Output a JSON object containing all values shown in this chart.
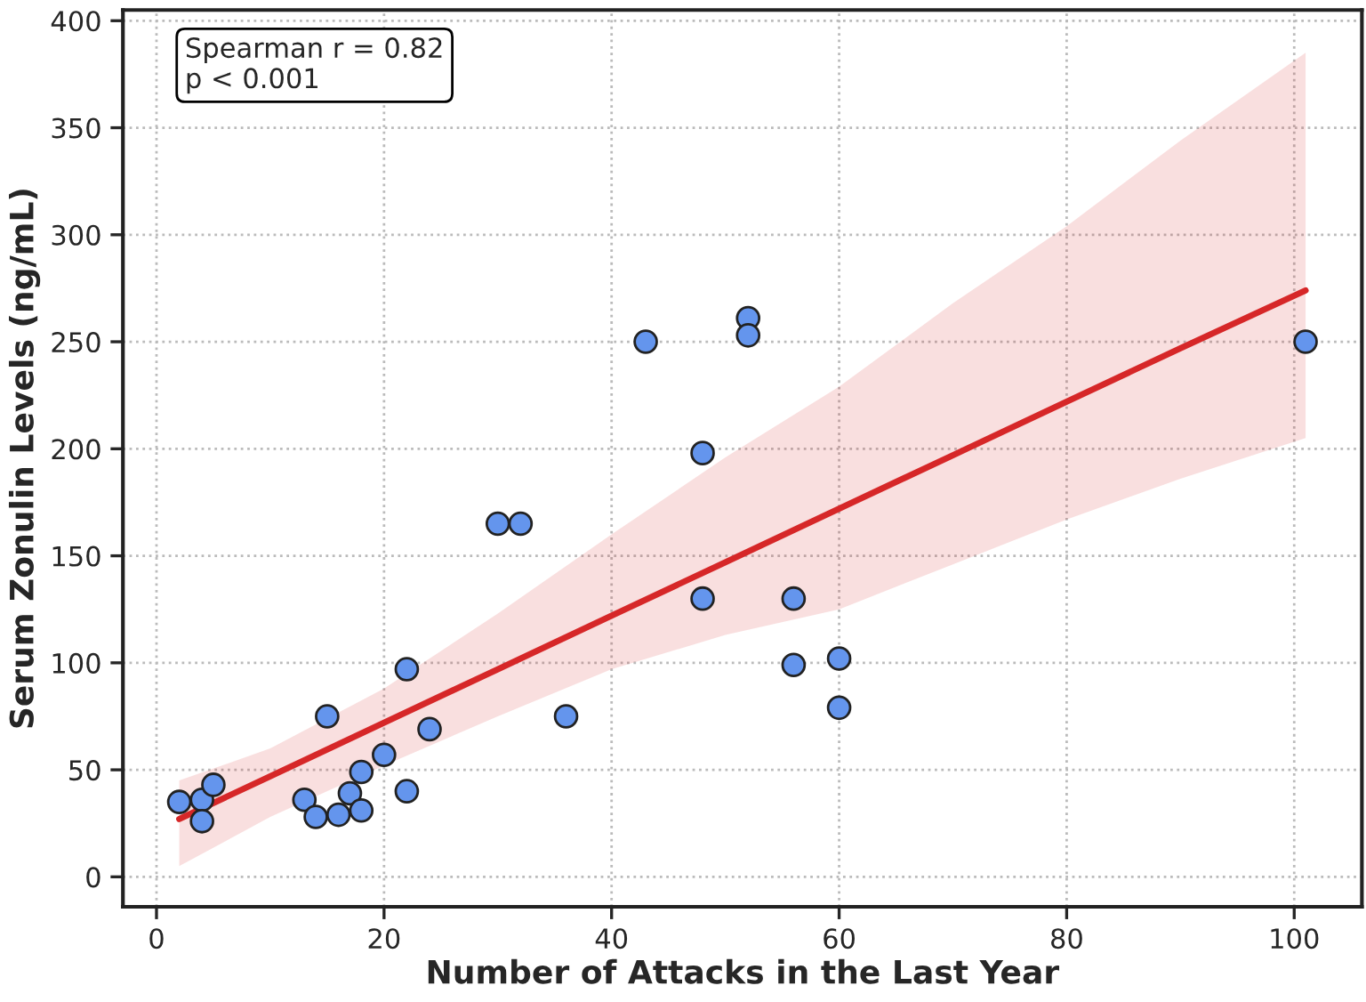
{
  "chart_data": {
    "type": "scatter",
    "xlabel": "Number of Attacks in the Last Year",
    "ylabel": "Serum Zonulin Levels (ng/mL)",
    "annotations": [
      "Spearman r = 0.82\np < 0.001"
    ],
    "xlim": [
      -2.95,
      105.95
    ],
    "xticks": [
      0,
      20,
      40,
      60,
      80,
      100
    ],
    "ylim": [
      -14,
      405
    ],
    "yticks": [
      0,
      50,
      100,
      150,
      200,
      250,
      300,
      350,
      400
    ],
    "grid": true,
    "series": [
      {
        "marker": "circle",
        "color": "#6495ed",
        "x": [
          2,
          4,
          4,
          5,
          13,
          14,
          15,
          16,
          17,
          18,
          18,
          20,
          22,
          22,
          24,
          30,
          32,
          36,
          43,
          48,
          48,
          52,
          52,
          56,
          56,
          60,
          60,
          101
        ],
        "values": [
          35,
          36,
          26,
          43,
          36,
          28,
          75,
          29,
          39,
          31,
          49,
          57,
          97,
          40,
          69,
          165,
          165,
          75,
          250,
          198,
          130,
          261,
          253,
          130,
          99,
          102,
          79,
          250
        ]
      },
      {
        "type": "line",
        "color": "#d62728",
        "line_style": "solid",
        "x": [
          2,
          10,
          20,
          30,
          40,
          50,
          60,
          70,
          80,
          90,
          101
        ],
        "values": [
          27,
          47,
          72,
          97,
          122,
          147,
          172,
          197,
          222,
          247,
          274
        ],
        "lower": [
          5,
          28,
          52,
          75,
          97,
          113,
          125,
          146,
          167,
          186,
          205
        ],
        "upper": [
          45,
          60,
          88,
          123,
          160,
          196,
          229,
          268,
          304,
          344,
          385
        ]
      }
    ]
  }
}
